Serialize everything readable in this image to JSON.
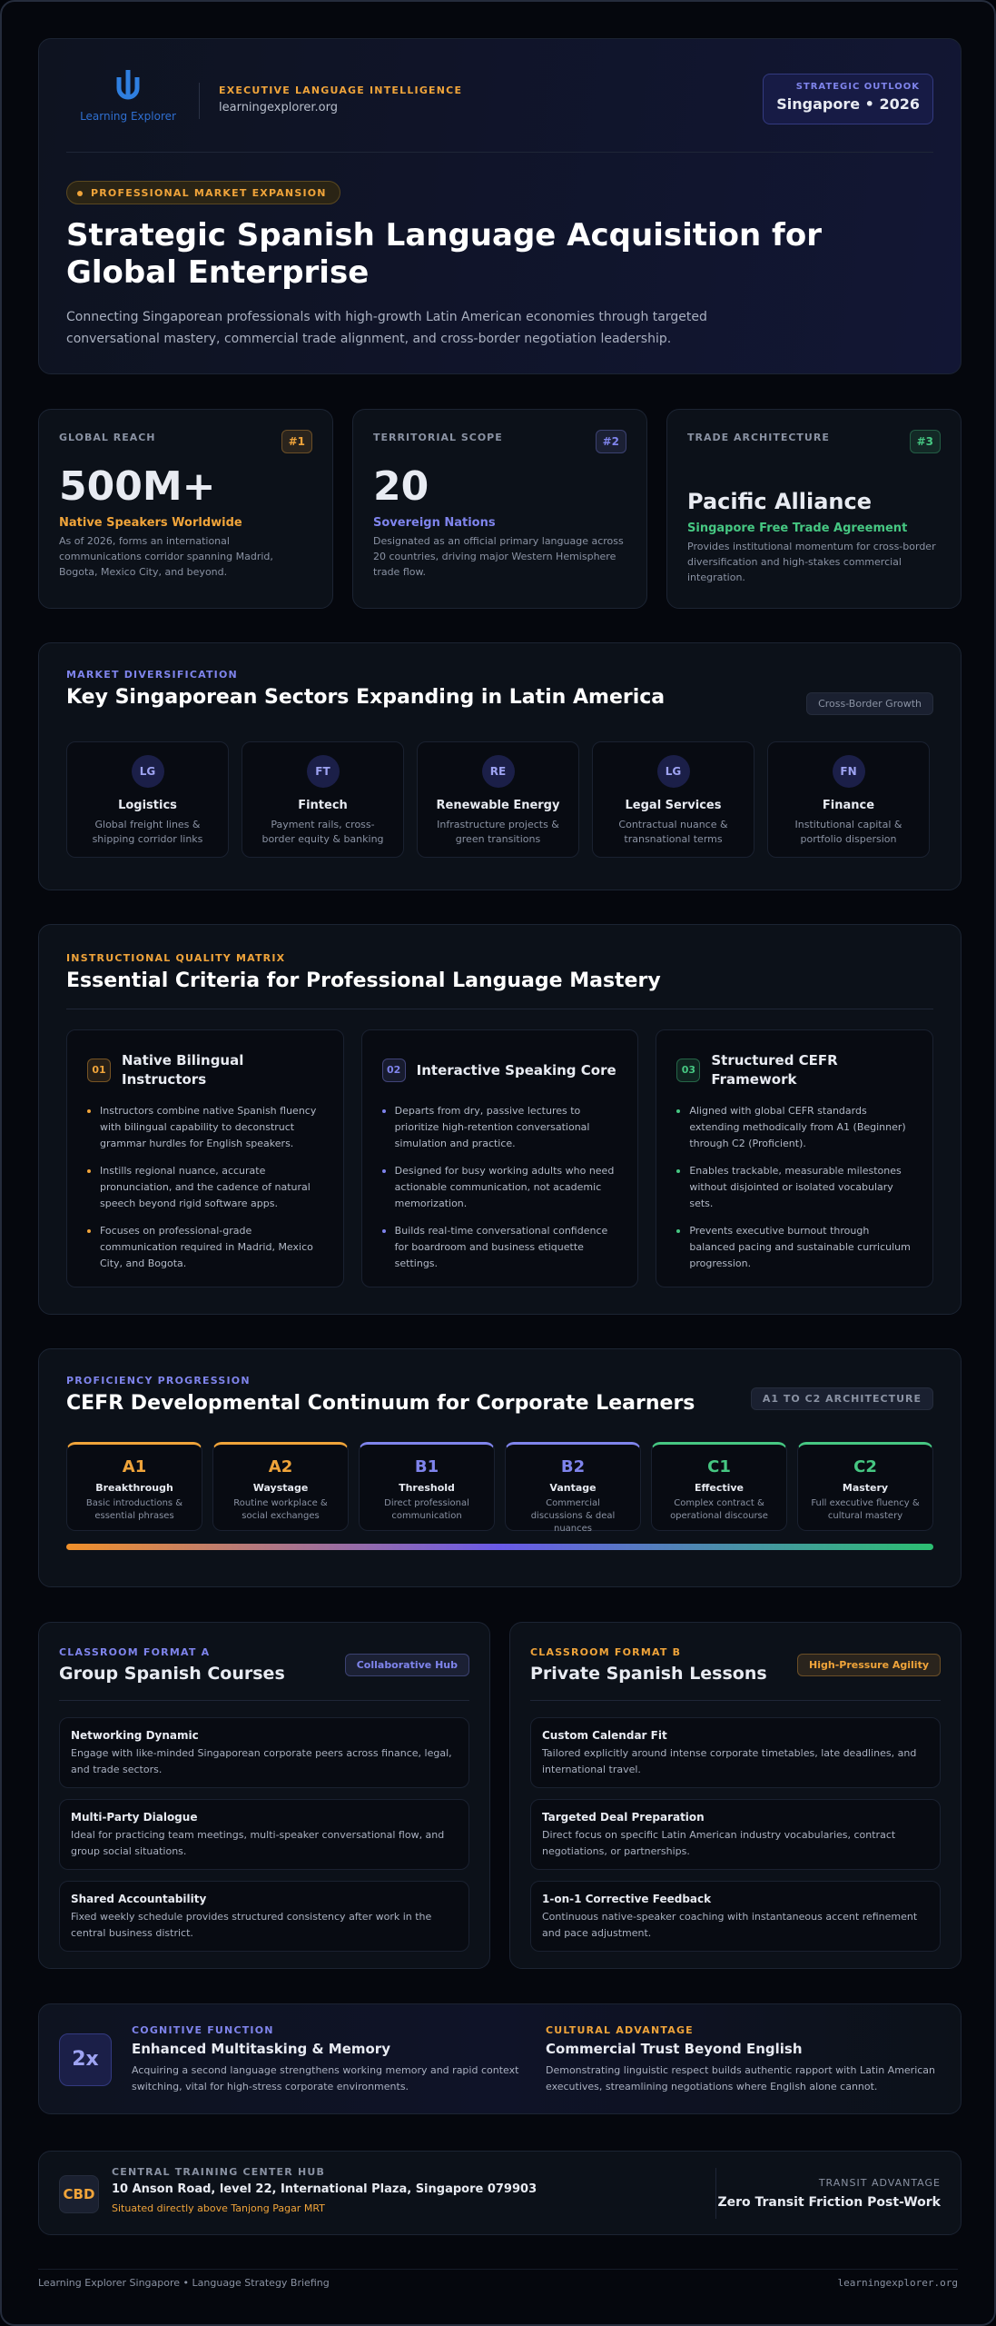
{
  "header": {
    "logo_text": "Learning Explorer",
    "kicker": "EXECUTIVE LANGUAGE INTELLIGENCE",
    "site": "learningexplorer.org",
    "outlook_label": "STRATEGIC OUTLOOK",
    "outlook_value": "Singapore • 2026",
    "badge": "PROFESSIONAL MARKET EXPANSION",
    "title": "Strategic Spanish Language Acquisition for Global Enterprise",
    "subtitle": "Connecting Singaporean professionals with high-growth Latin American economies through targeted conversational mastery, commercial trade alignment, and cross-border negotiation leadership."
  },
  "stats": [
    {
      "label": "GLOBAL REACH",
      "rank": "#1",
      "value": "500M+",
      "caption": "Native Speakers Worldwide",
      "text": "As of 2026, forms an international communications corridor spanning Madrid, Bogota, Mexico City, and beyond."
    },
    {
      "label": "TERRITORIAL SCOPE",
      "rank": "#2",
      "value": "20",
      "caption": "Sovereign Nations",
      "text": "Designated as an official primary language across 20 countries, driving major Western Hemisphere trade flow."
    },
    {
      "label": "TRADE ARCHITECTURE",
      "rank": "#3",
      "value": "Pacific Alliance",
      "caption": "Singapore Free Trade Agreement",
      "text": "Provides institutional momentum for cross-border diversification and high-stakes commercial integration."
    }
  ],
  "sectors": {
    "kicker": "MARKET DIVERSIFICATION",
    "title": "Key Singaporean Sectors Expanding in Latin America",
    "tag": "Cross-Border Growth",
    "items": [
      {
        "abbr": "LG",
        "name": "Logistics",
        "desc": "Global freight lines & shipping corridor links"
      },
      {
        "abbr": "FT",
        "name": "Fintech",
        "desc": "Payment rails, cross-border equity & banking"
      },
      {
        "abbr": "RE",
        "name": "Renewable Energy",
        "desc": "Infrastructure projects & green transitions"
      },
      {
        "abbr": "LG",
        "name": "Legal Services",
        "desc": "Contractual nuance & transnational terms"
      },
      {
        "abbr": "FN",
        "name": "Finance",
        "desc": "Institutional capital & portfolio dispersion"
      }
    ]
  },
  "criteria": {
    "kicker": "INSTRUCTIONAL QUALITY MATRIX",
    "title": "Essential Criteria for Professional Language Mastery",
    "items": [
      {
        "num": "01",
        "title": "Native Bilingual Instructors",
        "bullets": [
          "Instructors combine native Spanish fluency with bilingual capability to deconstruct grammar hurdles for English speakers.",
          "Instills regional nuance, accurate pronunciation, and the cadence of natural speech beyond rigid software apps.",
          "Focuses on professional-grade communication required in Madrid, Mexico City, and Bogota."
        ]
      },
      {
        "num": "02",
        "title": "Interactive Speaking Core",
        "bullets": [
          "Departs from dry, passive lectures to prioritize high-retention conversational simulation and practice.",
          "Designed for busy working adults who need actionable communication, not academic memorization.",
          "Builds real-time conversational confidence for boardroom and business etiquette settings."
        ]
      },
      {
        "num": "03",
        "title": "Structured CEFR Framework",
        "bullets": [
          "Aligned with global CEFR standards extending methodically from A1 (Beginner) through C2 (Proficient).",
          "Enables trackable, measurable milestones without disjointed or isolated vocabulary sets.",
          "Prevents executive burnout through balanced pacing and sustainable curriculum progression."
        ]
      }
    ]
  },
  "cefr": {
    "kicker": "PROFICIENCY PROGRESSION",
    "title": "CEFR Developmental Continuum for Corporate Learners",
    "tag": "A1 TO C2 ARCHITECTURE",
    "levels": [
      {
        "code": "A1",
        "name": "Breakthrough",
        "desc": "Basic introductions & essential phrases"
      },
      {
        "code": "A2",
        "name": "Waystage",
        "desc": "Routine workplace & social exchanges"
      },
      {
        "code": "B1",
        "name": "Threshold",
        "desc": "Direct professional communication"
      },
      {
        "code": "B2",
        "name": "Vantage",
        "desc": "Commercial discussions & deal nuances"
      },
      {
        "code": "C1",
        "name": "Effective",
        "desc": "Complex contract & operational discourse"
      },
      {
        "code": "C2",
        "name": "Mastery",
        "desc": "Full executive fluency & cultural mastery"
      }
    ]
  },
  "formats": [
    {
      "kicker": "CLASSROOM FORMAT A",
      "title": "Group Spanish Courses",
      "tag": "Collaborative Hub",
      "items": [
        {
          "title": "Networking Dynamic",
          "text": "Engage with like-minded Singaporean corporate peers across finance, legal, and trade sectors."
        },
        {
          "title": "Multi-Party Dialogue",
          "text": "Ideal for practicing team meetings, multi-speaker conversational flow, and group social situations."
        },
        {
          "title": "Shared Accountability",
          "text": "Fixed weekly schedule provides structured consistency after work in the central business district."
        }
      ]
    },
    {
      "kicker": "CLASSROOM FORMAT B",
      "title": "Private Spanish Lessons",
      "tag": "High-Pressure Agility",
      "items": [
        {
          "title": "Custom Calendar Fit",
          "text": "Tailored explicitly around intense corporate timetables, late deadlines, and international travel."
        },
        {
          "title": "Targeted Deal Preparation",
          "text": "Direct focus on specific Latin American industry vocabularies, contract negotiations, or partnerships."
        },
        {
          "title": "1-on-1 Corrective Feedback",
          "text": "Continuous native-speaker coaching with instantaneous accent refinement and pace adjustment."
        }
      ]
    }
  ],
  "benefits": [
    {
      "icon": "2x",
      "kicker": "COGNITIVE FUNCTION",
      "title": "Enhanced Multitasking & Memory",
      "text": "Acquiring a second language strengthens working memory and rapid context switching, vital for high-stress corporate environments."
    },
    {
      "kicker": "CULTURAL ADVANTAGE",
      "title": "Commercial Trust Beyond English",
      "text": "Demonstrating linguistic respect builds authentic rapport with Latin American executives, streamlining negotiations where English alone cannot."
    }
  ],
  "hub": {
    "icon": "CBD",
    "kicker": "CENTRAL TRAINING CENTER HUB",
    "address": "10 Anson Road, level 22, International Plaza, Singapore 079903",
    "note": "Situated directly above Tanjong Pagar MRT",
    "right_label": "TRANSIT ADVANTAGE",
    "right_value": "Zero Transit Friction Post-Work"
  },
  "footer": {
    "left": "Learning Explorer Singapore • Language Strategy Briefing",
    "right": "learningexplorer.org"
  }
}
